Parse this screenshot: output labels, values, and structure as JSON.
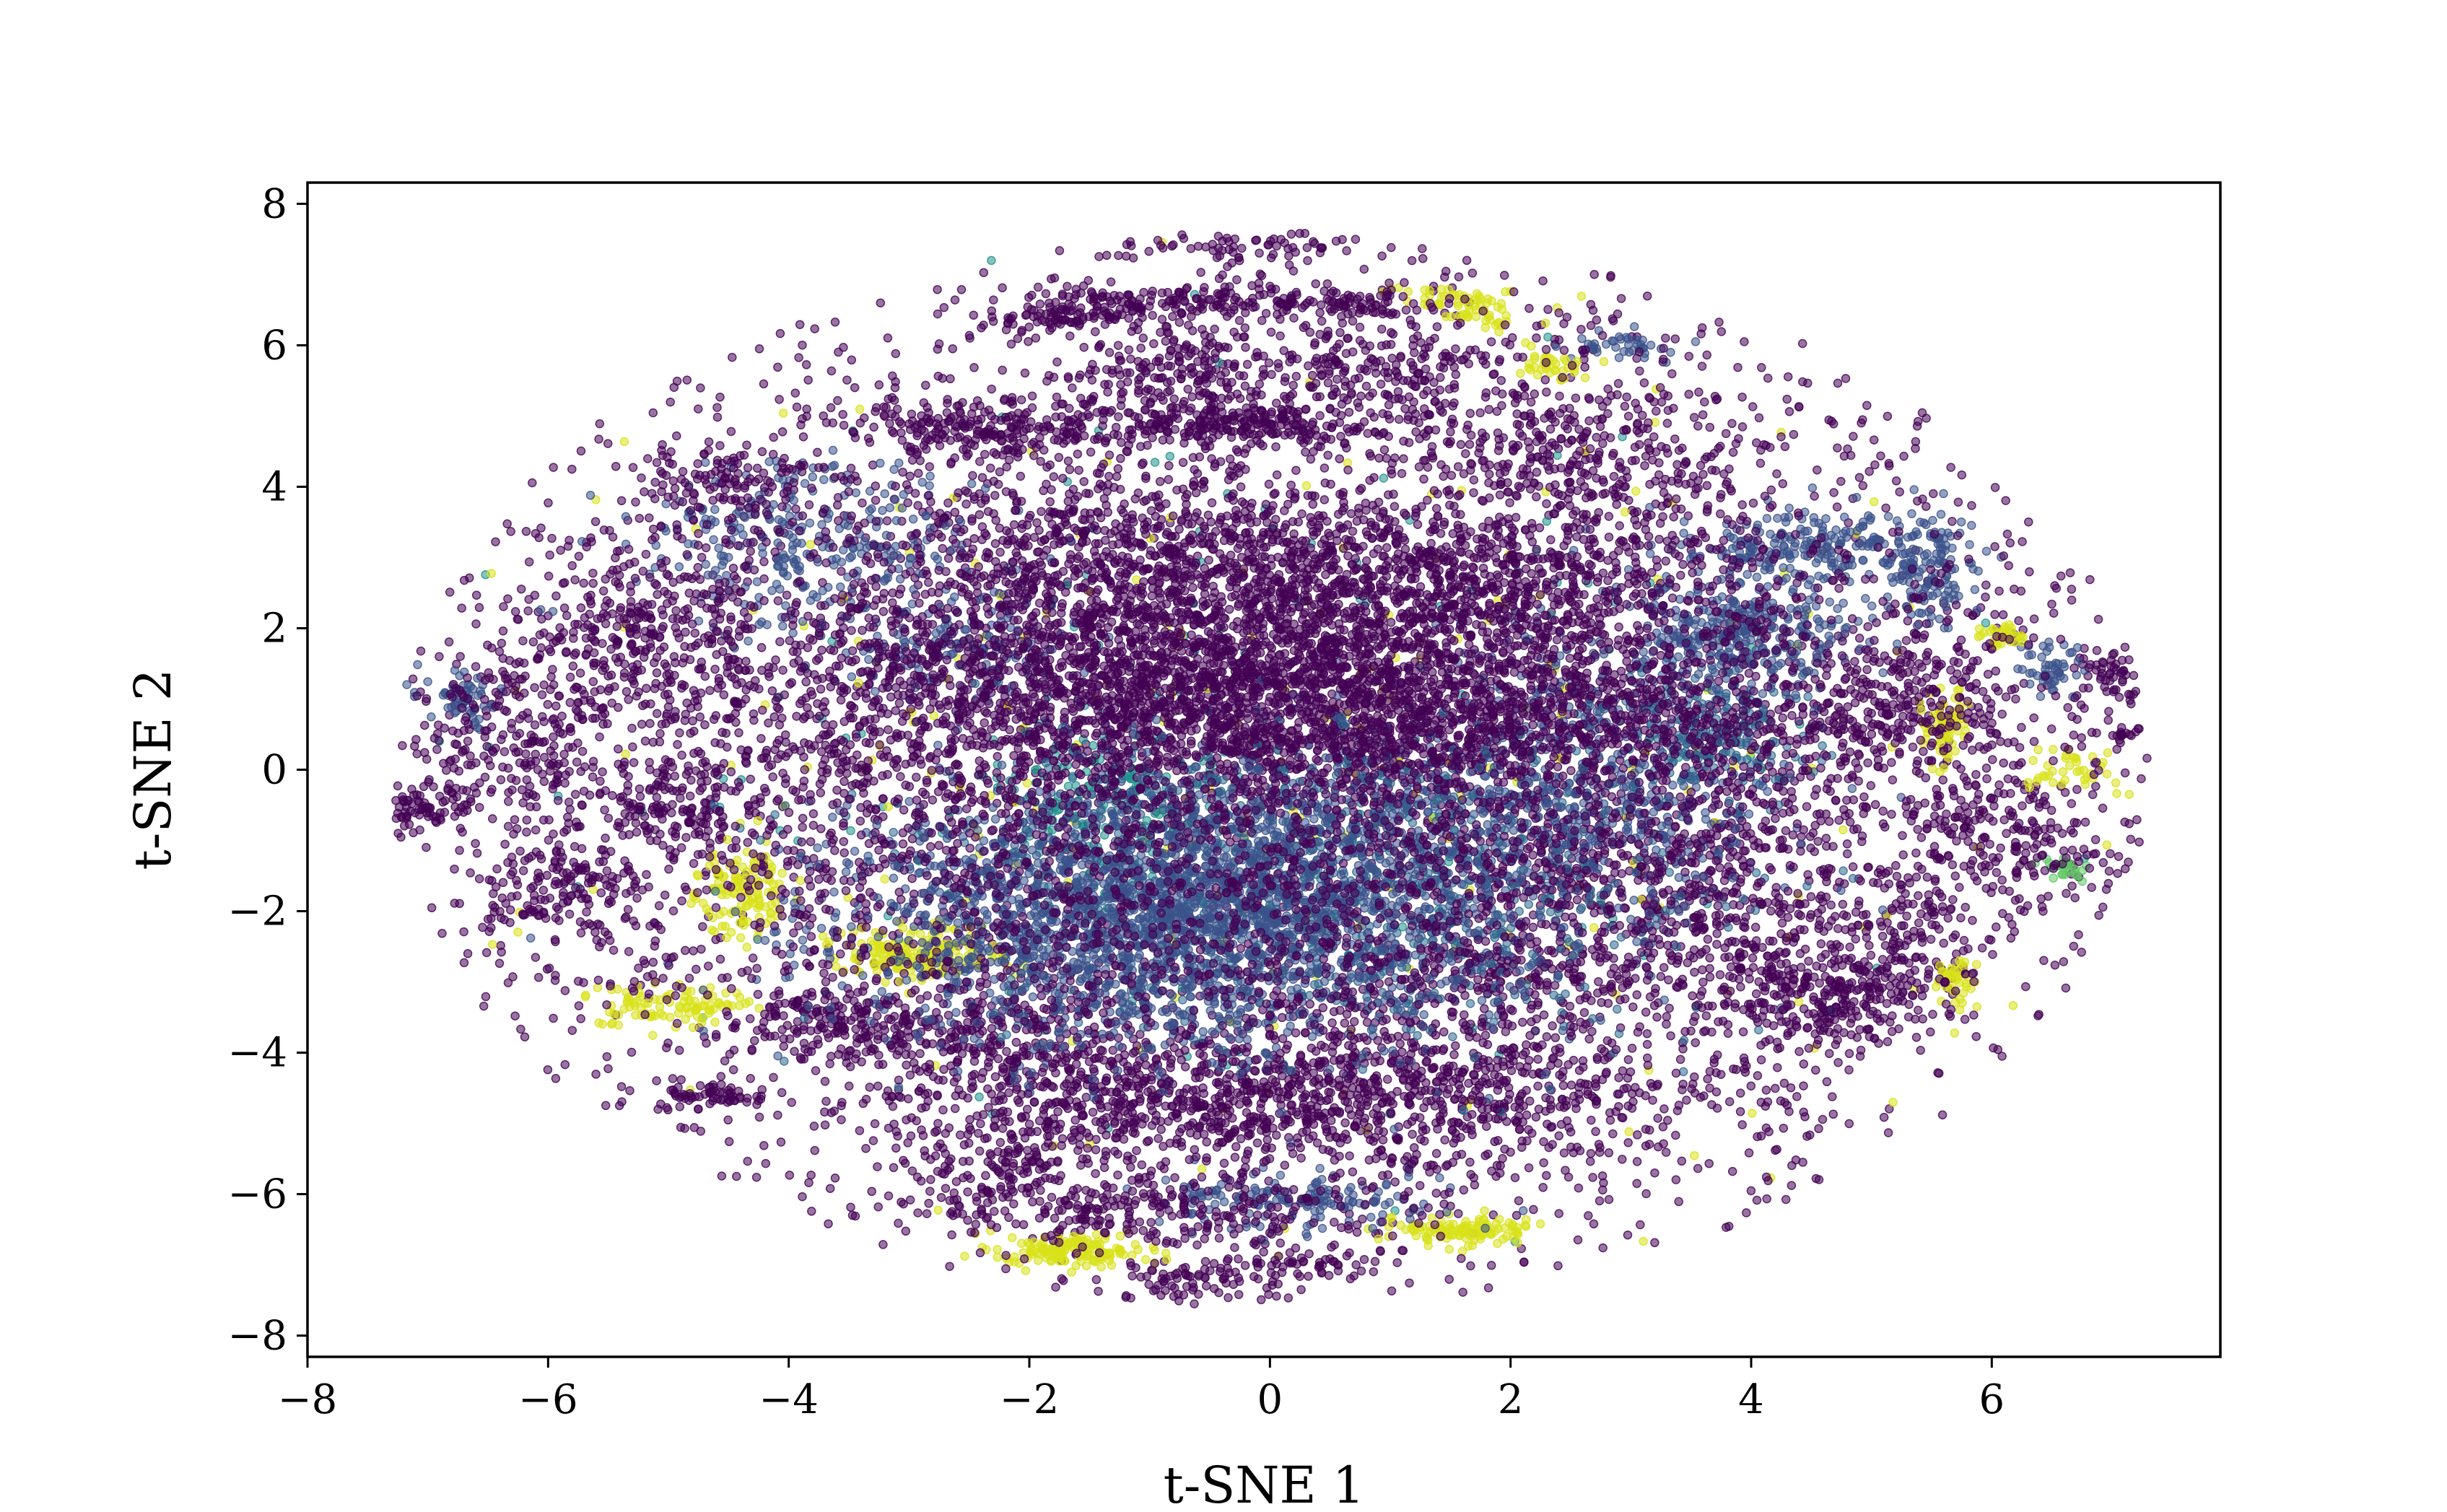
{
  "chart_data": {
    "type": "scatter",
    "title": "",
    "xlabel": "t-SNE 1",
    "ylabel": "t-SNE 2",
    "xlim": [
      -8,
      7.9
    ],
    "ylim": [
      -8.3,
      8.3
    ],
    "xticks": [
      -8,
      -6,
      -4,
      -2,
      0,
      2,
      4,
      6
    ],
    "yticks": [
      -8,
      -6,
      -4,
      -2,
      0,
      2,
      4,
      6,
      8
    ],
    "xtick_labels": [
      "−8",
      "−6",
      "−4",
      "−2",
      "0",
      "2",
      "4",
      "6"
    ],
    "ytick_labels": [
      "−8",
      "−6",
      "−4",
      "−2",
      "0",
      "2",
      "4",
      "6",
      "8"
    ],
    "grid": false,
    "legend": "none",
    "colormap": "viridis",
    "marker_alpha": 0.55,
    "colors": {
      "dark_purple": "#440154",
      "blue_purple": "#3b528b",
      "teal_blue": "#31688e",
      "teal": "#21918c",
      "green": "#5ec962",
      "yellow": "#d8e219",
      "frame": "#000000",
      "background": "#ffffff"
    },
    "clusters": [
      {
        "x": 0.0,
        "y": 0.0,
        "sx": 3.3,
        "sy": 3.0,
        "n": 5200,
        "color": "#440154"
      },
      {
        "x": -0.8,
        "y": -2.1,
        "sx": 1.3,
        "sy": 0.9,
        "n": 2300,
        "color": "#3b528b"
      },
      {
        "x": 0.3,
        "y": -1.7,
        "sx": 1.6,
        "sy": 1.1,
        "n": 900,
        "color": "#31688e"
      },
      {
        "x": -0.3,
        "y": 1.6,
        "sx": 1.9,
        "sy": 0.6,
        "n": 1500,
        "color": "#440154"
      },
      {
        "x": 0.5,
        "y": 0.6,
        "sx": 2.4,
        "sy": 0.5,
        "n": 1300,
        "color": "#440154"
      },
      {
        "x": 1.5,
        "y": 2.8,
        "sx": 1.5,
        "sy": 0.5,
        "n": 700,
        "color": "#440154"
      },
      {
        "x": 3.9,
        "y": 1.9,
        "sx": 0.5,
        "sy": 0.35,
        "n": 300,
        "color": "#3b528b"
      },
      {
        "x": 4.4,
        "y": 3.1,
        "sx": 0.5,
        "sy": 0.3,
        "n": 220,
        "color": "#3b528b"
      },
      {
        "x": 5.5,
        "y": 2.8,
        "sx": 0.2,
        "sy": 0.4,
        "n": 140,
        "color": "#3b528b"
      },
      {
        "x": 3.7,
        "y": 0.5,
        "sx": 0.4,
        "sy": 0.5,
        "n": 200,
        "color": "#31688e"
      },
      {
        "x": 2.6,
        "y": -0.2,
        "sx": 0.8,
        "sy": 1.2,
        "n": 500,
        "color": "#3b528b"
      },
      {
        "x": 3.3,
        "y": -1.5,
        "sx": 0.9,
        "sy": 0.6,
        "n": 380,
        "color": "#440154"
      },
      {
        "x": 4.7,
        "y": -3.3,
        "sx": 0.4,
        "sy": 0.3,
        "n": 160,
        "color": "#440154"
      },
      {
        "x": -3.5,
        "y": -3.6,
        "sx": 0.5,
        "sy": 0.3,
        "n": 180,
        "color": "#440154"
      },
      {
        "x": -2.0,
        "y": -4.0,
        "sx": 0.7,
        "sy": 0.5,
        "n": 300,
        "color": "#440154"
      },
      {
        "x": -0.5,
        "y": -4.7,
        "sx": 1.1,
        "sy": 0.4,
        "n": 450,
        "color": "#440154"
      },
      {
        "x": 1.5,
        "y": -4.6,
        "sx": 1.2,
        "sy": 0.5,
        "n": 450,
        "color": "#440154"
      },
      {
        "x": -0.8,
        "y": -6.2,
        "sx": 0.9,
        "sy": 0.3,
        "n": 250,
        "color": "#440154"
      },
      {
        "x": 0.3,
        "y": -6.1,
        "sx": 0.6,
        "sy": 0.2,
        "n": 160,
        "color": "#3b528b"
      },
      {
        "x": -2.2,
        "y": -5.6,
        "sx": 0.5,
        "sy": 0.4,
        "n": 160,
        "color": "#440154"
      },
      {
        "x": -1.6,
        "y": -6.8,
        "sx": 0.3,
        "sy": 0.12,
        "n": 150,
        "color": "#d8e219"
      },
      {
        "x": 1.6,
        "y": -6.5,
        "sx": 0.28,
        "sy": 0.1,
        "n": 120,
        "color": "#d8e219"
      },
      {
        "x": -0.7,
        "y": -7.3,
        "sx": 0.3,
        "sy": 0.15,
        "n": 60,
        "color": "#440154"
      },
      {
        "x": 0.2,
        "y": -7.0,
        "sx": 0.3,
        "sy": 0.15,
        "n": 60,
        "color": "#440154"
      },
      {
        "x": -2.9,
        "y": -2.6,
        "sx": 0.35,
        "sy": 0.2,
        "n": 170,
        "color": "#d8e219"
      },
      {
        "x": -4.4,
        "y": -1.7,
        "sx": 0.18,
        "sy": 0.3,
        "n": 120,
        "color": "#d8e219"
      },
      {
        "x": -5.0,
        "y": -3.3,
        "sx": 0.4,
        "sy": 0.15,
        "n": 100,
        "color": "#d8e219"
      },
      {
        "x": -5.9,
        "y": -1.7,
        "sx": 0.3,
        "sy": 0.3,
        "n": 130,
        "color": "#440154"
      },
      {
        "x": -6.2,
        "y": 0.3,
        "sx": 0.4,
        "sy": 0.6,
        "n": 160,
        "color": "#440154"
      },
      {
        "x": -6.7,
        "y": 1.0,
        "sx": 0.15,
        "sy": 0.2,
        "n": 60,
        "color": "#3b528b"
      },
      {
        "x": -7.1,
        "y": -0.6,
        "sx": 0.25,
        "sy": 0.2,
        "n": 70,
        "color": "#440154"
      },
      {
        "x": -5.3,
        "y": 1.9,
        "sx": 0.5,
        "sy": 0.6,
        "n": 260,
        "color": "#440154"
      },
      {
        "x": -4.5,
        "y": 4.1,
        "sx": 0.4,
        "sy": 0.3,
        "n": 120,
        "color": "#440154"
      },
      {
        "x": -3.8,
        "y": 3.2,
        "sx": 0.7,
        "sy": 0.6,
        "n": 300,
        "color": "#3b528b"
      },
      {
        "x": -2.3,
        "y": 4.8,
        "sx": 0.6,
        "sy": 0.2,
        "n": 200,
        "color": "#440154"
      },
      {
        "x": -0.3,
        "y": 4.9,
        "sx": 0.6,
        "sy": 0.15,
        "n": 220,
        "color": "#440154"
      },
      {
        "x": 0.9,
        "y": 5.7,
        "sx": 0.6,
        "sy": 0.4,
        "n": 200,
        "color": "#440154"
      },
      {
        "x": -0.8,
        "y": 5.6,
        "sx": 0.4,
        "sy": 0.3,
        "n": 150,
        "color": "#440154"
      },
      {
        "x": -1.7,
        "y": 6.4,
        "sx": 0.3,
        "sy": 0.1,
        "n": 80,
        "color": "#440154"
      },
      {
        "x": -0.9,
        "y": 6.6,
        "sx": 0.5,
        "sy": 0.1,
        "n": 120,
        "color": "#440154"
      },
      {
        "x": 0.5,
        "y": 6.6,
        "sx": 0.4,
        "sy": 0.1,
        "n": 100,
        "color": "#440154"
      },
      {
        "x": -0.3,
        "y": 7.4,
        "sx": 0.5,
        "sy": 0.1,
        "n": 60,
        "color": "#440154"
      },
      {
        "x": 1.6,
        "y": 6.7,
        "sx": 0.3,
        "sy": 0.08,
        "n": 40,
        "color": "#d8e219"
      },
      {
        "x": 2.3,
        "y": 5.7,
        "sx": 0.15,
        "sy": 0.1,
        "n": 40,
        "color": "#d8e219"
      },
      {
        "x": 1.8,
        "y": 6.4,
        "sx": 0.2,
        "sy": 0.1,
        "n": 30,
        "color": "#d8e219"
      },
      {
        "x": 2.9,
        "y": 6.0,
        "sx": 0.2,
        "sy": 0.1,
        "n": 40,
        "color": "#3b528b"
      },
      {
        "x": 2.6,
        "y": 4.4,
        "sx": 0.8,
        "sy": 0.5,
        "n": 250,
        "color": "#440154"
      },
      {
        "x": 5.6,
        "y": 1.0,
        "sx": 0.3,
        "sy": 0.5,
        "n": 120,
        "color": "#440154"
      },
      {
        "x": 5.6,
        "y": 0.6,
        "sx": 0.1,
        "sy": 0.3,
        "n": 60,
        "color": "#d8e219"
      },
      {
        "x": 6.1,
        "y": 1.9,
        "sx": 0.1,
        "sy": 0.08,
        "n": 35,
        "color": "#d8e219"
      },
      {
        "x": 6.5,
        "y": 1.4,
        "sx": 0.15,
        "sy": 0.2,
        "n": 50,
        "color": "#3b528b"
      },
      {
        "x": 7.0,
        "y": 1.4,
        "sx": 0.15,
        "sy": 0.15,
        "n": 40,
        "color": "#440154"
      },
      {
        "x": 6.7,
        "y": 0.0,
        "sx": 0.3,
        "sy": 0.2,
        "n": 40,
        "color": "#d8e219"
      },
      {
        "x": 7.1,
        "y": 0.5,
        "sx": 0.08,
        "sy": 0.05,
        "n": 15,
        "color": "#440154"
      },
      {
        "x": 6.3,
        "y": -1.0,
        "sx": 0.3,
        "sy": 0.5,
        "n": 80,
        "color": "#440154"
      },
      {
        "x": 6.6,
        "y": -1.4,
        "sx": 0.1,
        "sy": 0.1,
        "n": 25,
        "color": "#5ec962"
      },
      {
        "x": 5.7,
        "y": -3.0,
        "sx": 0.1,
        "sy": 0.2,
        "n": 40,
        "color": "#d8e219"
      },
      {
        "x": 5.8,
        "y": -0.8,
        "sx": 0.4,
        "sy": 0.4,
        "n": 100,
        "color": "#440154"
      },
      {
        "x": 5.2,
        "y": -2.4,
        "sx": 0.3,
        "sy": 0.5,
        "n": 120,
        "color": "#440154"
      },
      {
        "x": 4.9,
        "y": 0.8,
        "sx": 0.4,
        "sy": 0.5,
        "n": 120,
        "color": "#440154"
      },
      {
        "x": 4.1,
        "y": -2.8,
        "sx": 0.4,
        "sy": 0.4,
        "n": 120,
        "color": "#440154"
      },
      {
        "x": -4.9,
        "y": -0.5,
        "sx": 0.4,
        "sy": 0.4,
        "n": 140,
        "color": "#440154"
      },
      {
        "x": -4.6,
        "y": -4.6,
        "sx": 0.2,
        "sy": 0.1,
        "n": 60,
        "color": "#440154"
      },
      {
        "x": -1.4,
        "y": 3.2,
        "sx": 1.0,
        "sy": 0.5,
        "n": 400,
        "color": "#440154"
      },
      {
        "x": -2.5,
        "y": 1.8,
        "sx": 0.5,
        "sy": 0.4,
        "n": 150,
        "color": "#3b528b"
      },
      {
        "x": 1.0,
        "y": -0.6,
        "sx": 1.3,
        "sy": 0.6,
        "n": 400,
        "color": "#3b528b"
      },
      {
        "x": -1.4,
        "y": -0.4,
        "sx": 0.5,
        "sy": 0.4,
        "n": 150,
        "color": "#21918c"
      },
      {
        "x": 2.0,
        "y": -2.9,
        "sx": 0.5,
        "sy": 0.4,
        "n": 150,
        "color": "#440154"
      },
      {
        "x": 0.0,
        "y": 0.0,
        "sx": 3.0,
        "sy": 2.8,
        "n": 260,
        "color": "#d8e219"
      },
      {
        "x": 0.0,
        "y": 0.0,
        "sx": 2.6,
        "sy": 2.4,
        "n": 200,
        "color": "#21918c"
      },
      {
        "x": 0.0,
        "y": 0.0,
        "sx": 4.8,
        "sy": 4.6,
        "n": 2200,
        "color": "#440154"
      }
    ]
  }
}
